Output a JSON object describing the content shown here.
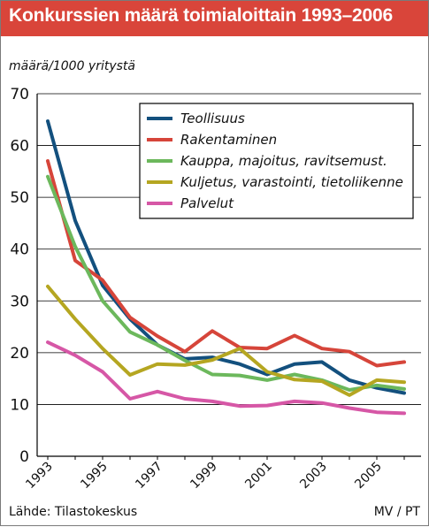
{
  "header": {
    "title": "Konkurssien määrä toimialoittain 1993–2006",
    "unit_label": "määrä/1000 yritystä"
  },
  "footer": {
    "source": "Lähde: Tilastokeskus",
    "credit": "MV / PT"
  },
  "colors": {
    "title_bar": "#d9453a",
    "teollisuus": "#13507e",
    "rakentaminen": "#d6453a",
    "kauppa": "#6cb85c",
    "kuljetus": "#b5a621",
    "palvelut": "#d657a6"
  },
  "chart_data": {
    "type": "line",
    "x": [
      1993,
      1994,
      1995,
      1996,
      1997,
      1998,
      1999,
      2000,
      2001,
      2002,
      2003,
      2004,
      2005,
      2006
    ],
    "x_tick_labels": [
      "1993",
      "1995",
      "1997",
      "1999",
      "2001",
      "2003",
      "2005"
    ],
    "y_tick_labels": [
      "0",
      "10",
      "20",
      "30",
      "40",
      "50",
      "60",
      "70"
    ],
    "ylim": [
      0,
      70
    ],
    "grid": true,
    "legend_position": "top-right",
    "series": [
      {
        "name": "Teollisuus",
        "color": "#13507e",
        "values": [
          64.7,
          45.5,
          33.0,
          26.5,
          21.5,
          18.8,
          19.1,
          17.8,
          15.8,
          17.8,
          18.2,
          14.7,
          13.2,
          12.2
        ]
      },
      {
        "name": "Rakentaminen",
        "color": "#d6453a",
        "values": [
          57.0,
          37.8,
          34.0,
          26.8,
          23.2,
          20.2,
          24.2,
          21.0,
          20.8,
          23.3,
          20.8,
          20.2,
          17.5,
          18.2
        ]
      },
      {
        "name": "Kauppa, majoitus, ravitsemust.",
        "color": "#6cb85c",
        "values": [
          54.0,
          40.5,
          30.0,
          24.0,
          21.5,
          18.5,
          15.8,
          15.6,
          14.7,
          15.8,
          14.7,
          12.8,
          13.7,
          13.0
        ]
      },
      {
        "name": "Kuljetus, varastointi, tietoliikenne",
        "color": "#b5a621",
        "values": [
          32.8,
          26.5,
          20.8,
          15.7,
          17.8,
          17.6,
          18.6,
          20.8,
          16.3,
          14.8,
          14.5,
          11.8,
          14.7,
          14.3
        ]
      },
      {
        "name": "Palvelut",
        "color": "#d657a6",
        "values": [
          22.0,
          19.5,
          16.3,
          11.1,
          12.5,
          11.1,
          10.6,
          9.7,
          9.8,
          10.6,
          10.3,
          9.3,
          8.5,
          8.3
        ]
      }
    ]
  }
}
